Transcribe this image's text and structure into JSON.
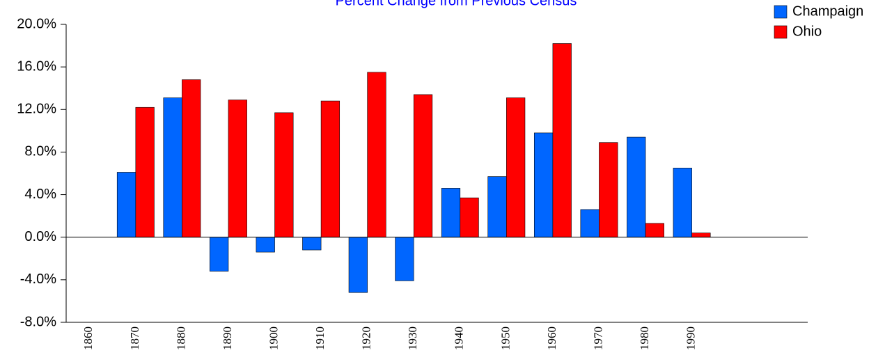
{
  "chart_data": {
    "type": "bar",
    "title": "Percent Change from Previous Census",
    "categories": [
      "1860",
      "1870",
      "1880",
      "1890",
      "1900",
      "1910",
      "1920",
      "1930",
      "1940",
      "1950",
      "1960",
      "1970",
      "1980",
      "1990",
      null,
      null
    ],
    "series": [
      {
        "name": "Champaign",
        "color": "#0066ff",
        "values": [
          null,
          6.1,
          13.1,
          -3.2,
          -1.4,
          -1.2,
          -5.2,
          -4.1,
          4.6,
          5.7,
          9.8,
          2.6,
          9.4,
          6.5,
          null,
          null
        ]
      },
      {
        "name": "Ohio",
        "color": "#ff0000",
        "values": [
          null,
          12.2,
          14.8,
          12.9,
          11.7,
          12.8,
          15.5,
          13.4,
          3.7,
          13.1,
          18.2,
          8.9,
          1.3,
          0.4,
          null,
          null
        ]
      }
    ],
    "ylim": [
      -8,
      20
    ],
    "yticks": [
      {
        "value": -8,
        "label": "-8.0%"
      },
      {
        "value": -4,
        "label": "-4.0%"
      },
      {
        "value": 0,
        "label": "0.0%"
      },
      {
        "value": 4,
        "label": "4.0%"
      },
      {
        "value": 8,
        "label": "8.0%"
      },
      {
        "value": 12,
        "label": "12.0%"
      },
      {
        "value": 16,
        "label": "16.0%"
      },
      {
        "value": 20,
        "label": "20.0%"
      }
    ],
    "legend": "top-right"
  }
}
